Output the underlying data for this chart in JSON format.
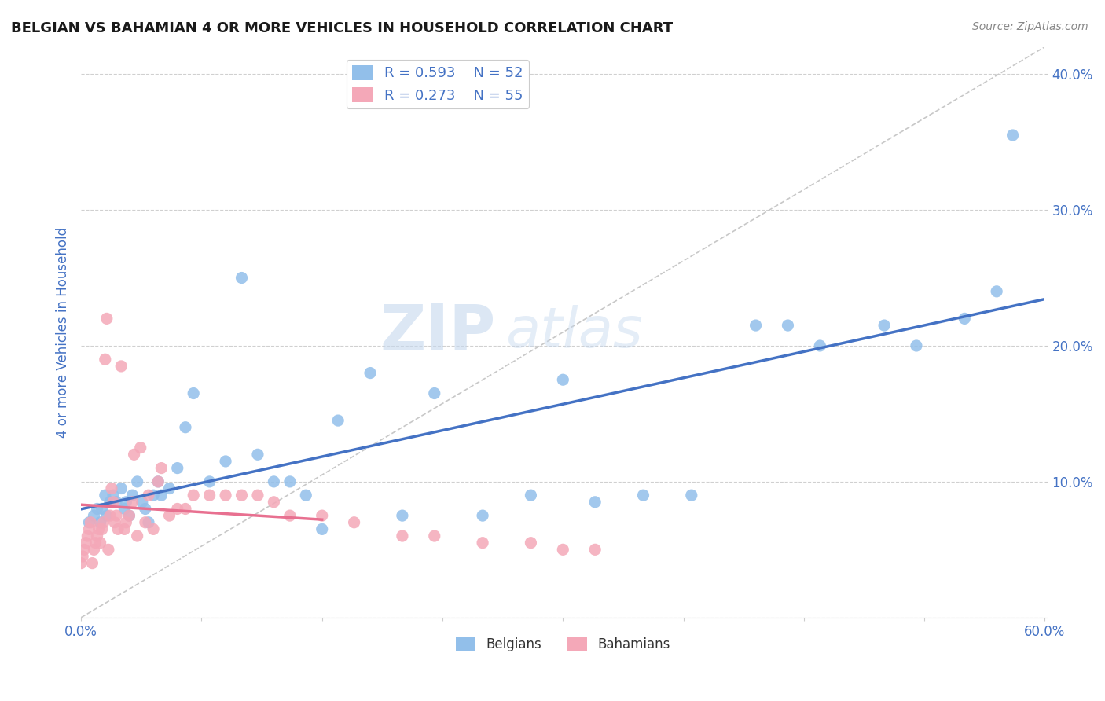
{
  "title": "BELGIAN VS BAHAMIAN 4 OR MORE VEHICLES IN HOUSEHOLD CORRELATION CHART",
  "source": "Source: ZipAtlas.com",
  "xlabel": "",
  "ylabel": "4 or more Vehicles in Household",
  "xlim": [
    0.0,
    0.6
  ],
  "ylim": [
    0.0,
    0.42
  ],
  "xticks": [
    0.0,
    0.075,
    0.15,
    0.225,
    0.3,
    0.375,
    0.45,
    0.525,
    0.6
  ],
  "yticks": [
    0.0,
    0.1,
    0.2,
    0.3,
    0.4
  ],
  "xticklabels_shown": {
    "0.0": "0.0%",
    "0.60": "60.0%"
  },
  "yticklabels": [
    "",
    "10.0%",
    "20.0%",
    "30.0%",
    "40.0%"
  ],
  "belgian_R": 0.593,
  "belgian_N": 52,
  "bahamian_R": 0.273,
  "bahamian_N": 55,
  "belgian_color": "#92BFEA",
  "bahamian_color": "#F4A8B8",
  "belgian_line_color": "#4472C4",
  "bahamian_line_color": "#E87090",
  "watermark_text": "ZIP",
  "watermark_text2": "atlas",
  "background_color": "#ffffff",
  "grid_color": "#d0d0d0",
  "tick_color": "#4472C4",
  "belgian_x": [
    0.005,
    0.008,
    0.01,
    0.012,
    0.013,
    0.015,
    0.016,
    0.018,
    0.02,
    0.022,
    0.025,
    0.027,
    0.028,
    0.03,
    0.032,
    0.035,
    0.038,
    0.04,
    0.042,
    0.045,
    0.048,
    0.05,
    0.055,
    0.06,
    0.065,
    0.07,
    0.08,
    0.09,
    0.1,
    0.11,
    0.12,
    0.13,
    0.14,
    0.15,
    0.16,
    0.18,
    0.2,
    0.22,
    0.25,
    0.28,
    0.3,
    0.32,
    0.35,
    0.38,
    0.42,
    0.44,
    0.46,
    0.5,
    0.52,
    0.55,
    0.57,
    0.58
  ],
  "belgian_y": [
    0.07,
    0.075,
    0.08,
    0.07,
    0.08,
    0.09,
    0.075,
    0.085,
    0.09,
    0.085,
    0.095,
    0.08,
    0.085,
    0.075,
    0.09,
    0.1,
    0.085,
    0.08,
    0.07,
    0.09,
    0.1,
    0.09,
    0.095,
    0.11,
    0.14,
    0.165,
    0.1,
    0.115,
    0.25,
    0.12,
    0.1,
    0.1,
    0.09,
    0.065,
    0.145,
    0.18,
    0.075,
    0.165,
    0.075,
    0.09,
    0.175,
    0.085,
    0.09,
    0.09,
    0.215,
    0.215,
    0.2,
    0.215,
    0.2,
    0.22,
    0.24,
    0.355
  ],
  "bahamian_x": [
    0.0,
    0.001,
    0.002,
    0.003,
    0.004,
    0.005,
    0.006,
    0.007,
    0.008,
    0.009,
    0.01,
    0.011,
    0.012,
    0.013,
    0.014,
    0.015,
    0.016,
    0.017,
    0.018,
    0.019,
    0.02,
    0.021,
    0.022,
    0.023,
    0.025,
    0.027,
    0.028,
    0.03,
    0.032,
    0.033,
    0.035,
    0.037,
    0.04,
    0.042,
    0.045,
    0.048,
    0.05,
    0.055,
    0.06,
    0.065,
    0.07,
    0.08,
    0.09,
    0.1,
    0.11,
    0.12,
    0.13,
    0.15,
    0.17,
    0.2,
    0.22,
    0.25,
    0.28,
    0.3,
    0.32
  ],
  "bahamian_y": [
    0.04,
    0.045,
    0.05,
    0.055,
    0.06,
    0.065,
    0.07,
    0.04,
    0.05,
    0.055,
    0.06,
    0.065,
    0.055,
    0.065,
    0.07,
    0.19,
    0.22,
    0.05,
    0.075,
    0.095,
    0.085,
    0.07,
    0.075,
    0.065,
    0.185,
    0.065,
    0.07,
    0.075,
    0.085,
    0.12,
    0.06,
    0.125,
    0.07,
    0.09,
    0.065,
    0.1,
    0.11,
    0.075,
    0.08,
    0.08,
    0.09,
    0.09,
    0.09,
    0.09,
    0.09,
    0.085,
    0.075,
    0.075,
    0.07,
    0.06,
    0.06,
    0.055,
    0.055,
    0.05,
    0.05
  ]
}
